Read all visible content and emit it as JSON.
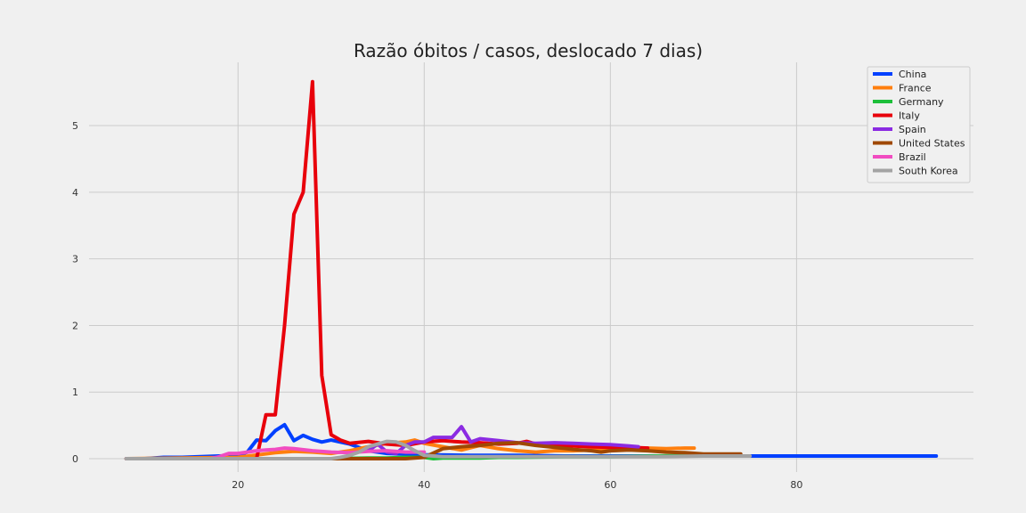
{
  "chart_data": {
    "type": "line",
    "title": "Razão óbitos / casos, deslocado 7 dias)",
    "xlabel": "",
    "ylabel": "",
    "xlim": [
      4,
      99
    ],
    "ylim": [
      -0.2,
      5.95
    ],
    "x_ticks": [
      20,
      40,
      60,
      80
    ],
    "y_ticks": [
      0,
      1,
      2,
      3,
      4,
      5
    ],
    "grid": true,
    "legend_position": "top-right",
    "series": [
      {
        "name": "China",
        "color": "#0040ff",
        "x": [
          8,
          10,
          12,
          14,
          16,
          18,
          20,
          21,
          22,
          23,
          24,
          25,
          26,
          27,
          28,
          29,
          30,
          32,
          34,
          36,
          40,
          45,
          50,
          55,
          60,
          65,
          70,
          75,
          80,
          85,
          90,
          95
        ],
        "values": [
          0,
          0,
          0.02,
          0.02,
          0.03,
          0.04,
          0.05,
          0.1,
          0.28,
          0.27,
          0.42,
          0.51,
          0.27,
          0.35,
          0.29,
          0.25,
          0.28,
          0.22,
          0.12,
          0.08,
          0.06,
          0.05,
          0.05,
          0.04,
          0.04,
          0.04,
          0.04,
          0.04,
          0.04,
          0.04,
          0.04,
          0.04
        ]
      },
      {
        "name": "France",
        "color": "#ff7f0e",
        "x": [
          8,
          20,
          24,
          26,
          28,
          30,
          32,
          34,
          36,
          38,
          39,
          40,
          42,
          44,
          46,
          48,
          50,
          52,
          54,
          56,
          58,
          60,
          62,
          64,
          66,
          68,
          69
        ],
        "values": [
          0,
          0.02,
          0.09,
          0.11,
          0.1,
          0.08,
          0.12,
          0.18,
          0.23,
          0.25,
          0.28,
          0.23,
          0.18,
          0.13,
          0.2,
          0.15,
          0.12,
          0.1,
          0.12,
          0.12,
          0.13,
          0.14,
          0.15,
          0.16,
          0.15,
          0.16,
          0.16
        ]
      },
      {
        "name": "Germany",
        "color": "#1dbf3a",
        "x": [
          8,
          30,
          34,
          36,
          38,
          40,
          41,
          42,
          44,
          46,
          48,
          50,
          55,
          60,
          65,
          70,
          74
        ],
        "values": [
          0,
          0,
          0.01,
          0.01,
          0.02,
          0.02,
          0,
          0.01,
          0.01,
          0.01,
          0.02,
          0.02,
          0.03,
          0.03,
          0.04,
          0.05,
          0.05
        ]
      },
      {
        "name": "Italy",
        "color": "#e8000b",
        "x": [
          22,
          23,
          24,
          25,
          26,
          27,
          28,
          29,
          30,
          31,
          32,
          34,
          36,
          38,
          40,
          42,
          44,
          46,
          48,
          50,
          51,
          52,
          54,
          56,
          58,
          60,
          62,
          64
        ],
        "values": [
          0,
          0.66,
          0.66,
          2.0,
          3.67,
          4.0,
          5.66,
          1.25,
          0.36,
          0.28,
          0.23,
          0.26,
          0.22,
          0.2,
          0.25,
          0.27,
          0.25,
          0.24,
          0.22,
          0.23,
          0.26,
          0.22,
          0.2,
          0.19,
          0.18,
          0.17,
          0.17,
          0.16
        ]
      },
      {
        "name": "Spain",
        "color": "#8b2be2",
        "x": [
          34,
          35,
          36,
          37,
          38,
          39,
          40,
          41,
          42,
          43,
          44,
          45,
          46,
          48,
          50,
          52,
          54,
          56,
          58,
          60,
          62,
          63
        ],
        "values": [
          0.12,
          0.22,
          0.1,
          0.08,
          0.2,
          0.25,
          0.25,
          0.32,
          0.32,
          0.32,
          0.48,
          0.25,
          0.3,
          0.27,
          0.24,
          0.23,
          0.24,
          0.23,
          0.22,
          0.21,
          0.19,
          0.18
        ]
      },
      {
        "name": "United States",
        "color": "#9f4800",
        "x": [
          8,
          30,
          35,
          38,
          40,
          42,
          44,
          46,
          48,
          50,
          52,
          54,
          56,
          58,
          59,
          60,
          62,
          64,
          66,
          68,
          70,
          72,
          74
        ],
        "values": [
          0,
          0,
          0,
          0,
          0.02,
          0.15,
          0.18,
          0.2,
          0.23,
          0.24,
          0.2,
          0.17,
          0.14,
          0.12,
          0.1,
          0.12,
          0.13,
          0.12,
          0.1,
          0.09,
          0.07,
          0.07,
          0.07
        ]
      },
      {
        "name": "Brazil",
        "color": "#f14cc1",
        "x": [
          8,
          17,
          18,
          19,
          20,
          21,
          22,
          23,
          24,
          25,
          26,
          28,
          30,
          32,
          34,
          36,
          38,
          40
        ],
        "values": [
          0,
          0,
          0.03,
          0.08,
          0.08,
          0.1,
          0.12,
          0.13,
          0.14,
          0.16,
          0.15,
          0.12,
          0.1,
          0.09,
          0.11,
          0.12,
          0.1,
          0.1
        ]
      },
      {
        "name": "South Korea",
        "color": "#a3a3a3",
        "x": [
          8,
          30,
          31,
          32,
          33,
          34,
          35,
          36,
          37,
          38,
          39,
          40,
          42,
          45,
          50,
          55,
          60,
          65,
          70,
          75
        ],
        "values": [
          0,
          0,
          0.02,
          0.05,
          0.1,
          0.18,
          0.22,
          0.26,
          0.25,
          0.2,
          0.12,
          0.05,
          0.03,
          0.03,
          0.03,
          0.03,
          0.03,
          0.03,
          0.04,
          0.04
        ]
      }
    ]
  }
}
